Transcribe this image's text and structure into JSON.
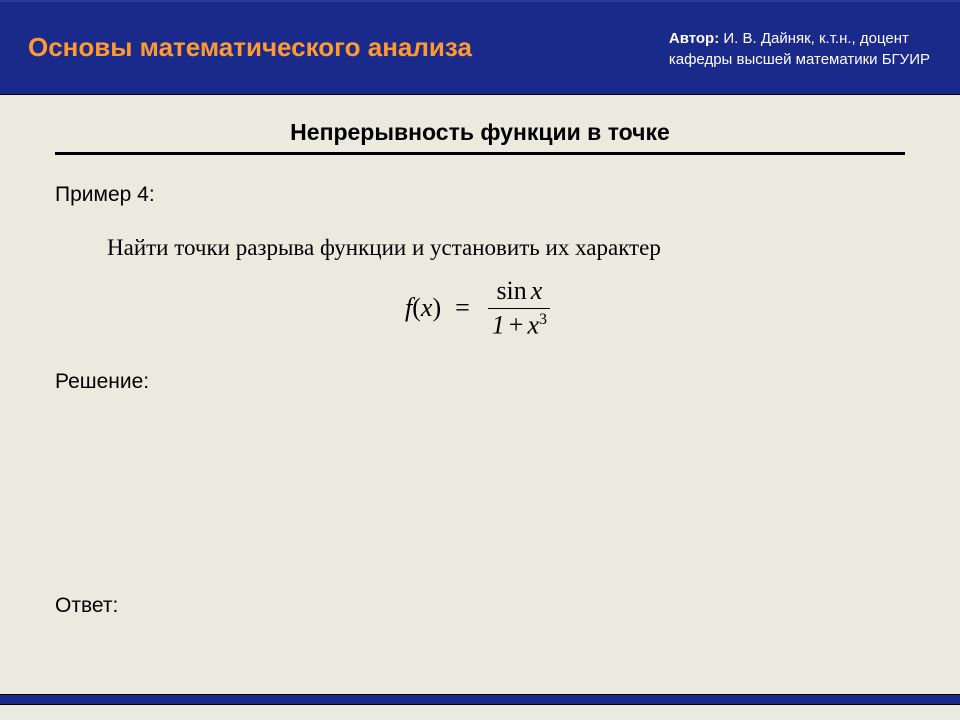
{
  "header": {
    "title": "Основы математического анализа",
    "author_label": "Автор:",
    "author_name": "И. В. Дайняк, к.т.н., доцент",
    "author_affiliation": "кафедры высшей математики БГУИР",
    "title_color": "#ff9933",
    "band_color": "#1a2a8a",
    "author_text_color": "#ffffff"
  },
  "content": {
    "section_title": "Непрерывность функции в точке",
    "example_label": "Пример 4:",
    "problem_text": "Найти точки разрыва функции и установить их характер",
    "solution_label": "Решение:",
    "answer_label": "Ответ:"
  },
  "formula": {
    "lhs_f": "f",
    "lhs_open": "(",
    "lhs_var": "x",
    "lhs_close": ")",
    "eq": "=",
    "numerator_fn": "sin",
    "numerator_var": "x",
    "denom_one": "1",
    "denom_plus": "+",
    "denom_var": "x",
    "denom_exp": "3"
  },
  "colors": {
    "background": "#eaeadf",
    "text": "#000000",
    "separator": "#000000"
  }
}
